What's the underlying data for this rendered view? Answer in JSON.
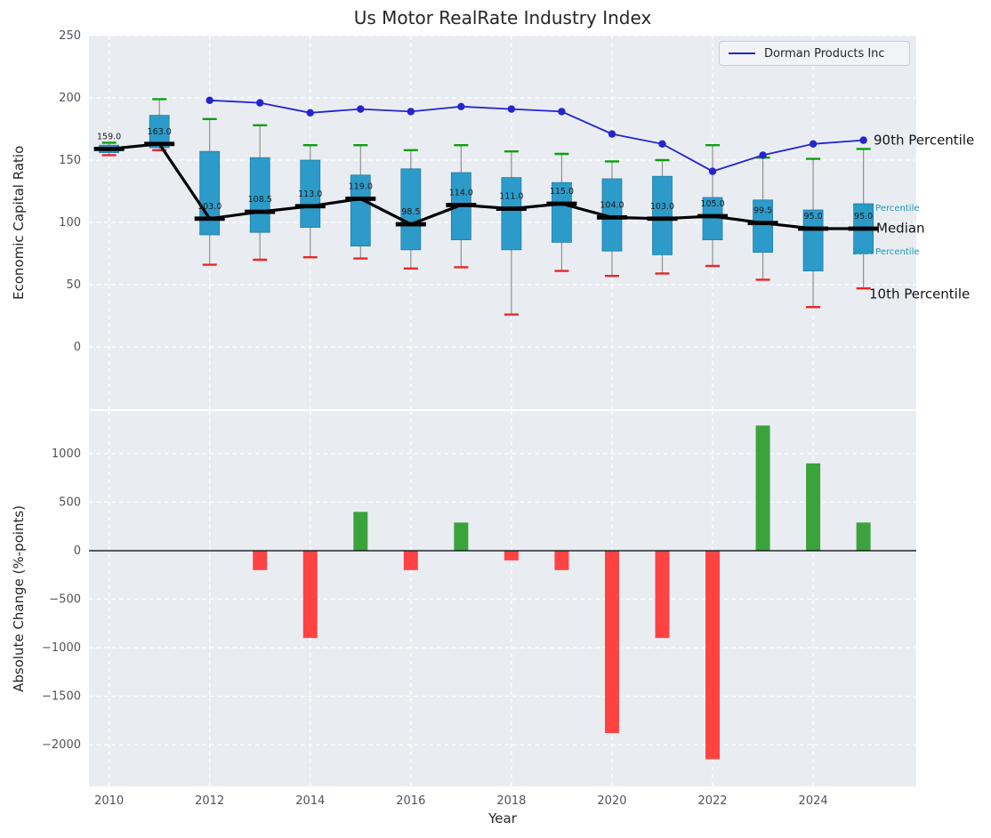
{
  "title": "Us Motor RealRate Industry Index",
  "style": {
    "axes_background": "#e9edf2",
    "grid_color": "#ffffff",
    "tick_label_color": "#52525c",
    "text_color": "#262626"
  },
  "chart_data": [
    {
      "type": "boxplot",
      "title": "Us Motor RealRate Industry Index",
      "ylabel": "Economic Capital Ratio",
      "ylim": [
        -50,
        250
      ],
      "yticks": [
        0,
        50,
        100,
        150,
        200,
        250
      ],
      "xlim": [
        2009.6,
        2026.05
      ],
      "xticks": [
        2010,
        2012,
        2014,
        2016,
        2018,
        2020,
        2022,
        2024
      ],
      "grid": "white dashed",
      "legend_position": "upper right",
      "years": [
        2010,
        2011,
        2012,
        2013,
        2014,
        2015,
        2016,
        2017,
        2018,
        2019,
        2020,
        2021,
        2022,
        2023,
        2024,
        2025
      ],
      "boxes": {
        "p90": [
          164,
          199,
          183,
          178,
          162,
          162,
          158,
          162,
          157,
          155,
          149,
          150,
          162,
          152,
          151,
          159
        ],
        "q3": [
          162,
          186,
          157,
          152,
          150,
          138,
          143,
          140,
          136,
          132,
          135,
          137,
          120,
          118,
          110,
          115
        ],
        "median": [
          159,
          163,
          103,
          108.5,
          113,
          119,
          98.5,
          114,
          111,
          115,
          104,
          103,
          105,
          99.5,
          95,
          95
        ],
        "q1": [
          156,
          160,
          90,
          92,
          96,
          81,
          78,
          86,
          78,
          84,
          77,
          74,
          86,
          76,
          61,
          75
        ],
        "p10": [
          154,
          158,
          66,
          70,
          72,
          71,
          63,
          64,
          26,
          61,
          57,
          59,
          65,
          54,
          32,
          47
        ]
      },
      "median_labels": [
        "159.0",
        "163.0",
        "103.0",
        "108.5",
        "113.0",
        "119.0",
        "98.5",
        "114.0",
        "111.0",
        "115.0",
        "104.0",
        "103.0",
        "105.0",
        "99.5",
        "95.0",
        "95.0"
      ],
      "colors": {
        "box": "#2d9bc9",
        "box_edge": "#1f7da6",
        "whisker": "#8f8f8f",
        "cap_top": "#0ba00b",
        "cap_bottom": "#ee2424",
        "median": "#000000"
      },
      "series": [
        {
          "name": "Dorman Products Inc",
          "color": "#2424cf",
          "marker": "circle",
          "x": [
            2012,
            2013,
            2014,
            2015,
            2016,
            2017,
            2018,
            2019,
            2020,
            2021,
            2022,
            2023,
            2024,
            2025
          ],
          "values": [
            198,
            196,
            188,
            191,
            189,
            193,
            191,
            189,
            171,
            163,
            141,
            154,
            163,
            166
          ]
        }
      ],
      "median_series": {
        "name": "Median",
        "color": "#000000"
      },
      "annotations": [
        {
          "text": "90th Percentile",
          "value": 166,
          "color": "#141414",
          "font_size": 15
        },
        {
          "text": "75th Percentile",
          "value": 111,
          "color": "#1b9ab5",
          "font_size": 10
        },
        {
          "text": "Median",
          "value": 95,
          "color": "#141414",
          "font_size": 15
        },
        {
          "text": "25th Percentile",
          "value": 76,
          "color": "#1b9ab5",
          "font_size": 10
        },
        {
          "text": "10th Percentile",
          "value": 42,
          "color": "#141414",
          "font_size": 15
        }
      ]
    },
    {
      "type": "bar",
      "ylabel": "Absolute Change (%-points)",
      "xlabel": "Year",
      "ylim": [
        -2430,
        1440
      ],
      "yticks": [
        -2000,
        -1500,
        -1000,
        -500,
        0,
        500,
        1000
      ],
      "years": [
        2010,
        2011,
        2012,
        2013,
        2014,
        2015,
        2016,
        2017,
        2018,
        2019,
        2020,
        2021,
        2022,
        2023,
        2024,
        2025
      ],
      "values": [
        null,
        null,
        null,
        -200,
        -900,
        400,
        -200,
        290,
        -100,
        -200,
        -1880,
        -900,
        -2150,
        1290,
        900,
        290
      ],
      "colors": {
        "positive": "#3ba33b",
        "negative": "#ff4343"
      }
    }
  ]
}
